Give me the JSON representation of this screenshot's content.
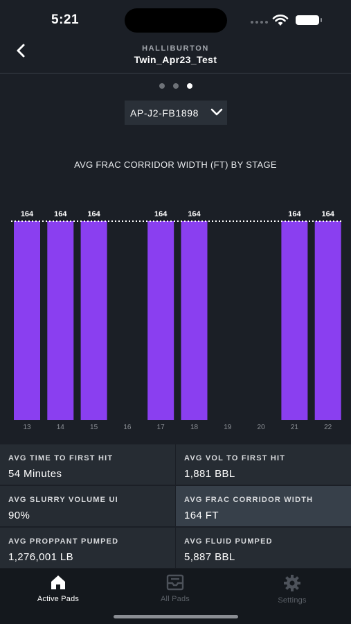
{
  "status_bar": {
    "time": "5:21"
  },
  "header": {
    "company": "HALLIBURTON",
    "pad_name": "Twin_Apr23_Test"
  },
  "pager": {
    "count": 3,
    "active": 2
  },
  "well_select": {
    "value": "AP-J2-FB1898"
  },
  "chart_data": {
    "type": "bar",
    "title": "AVG FRAC CORRIDOR WIDTH (FT) BY STAGE",
    "categories": [
      "13",
      "14",
      "15",
      "16",
      "17",
      "18",
      "19",
      "20",
      "21",
      "22"
    ],
    "values": [
      164,
      164,
      164,
      null,
      164,
      164,
      null,
      null,
      164,
      164
    ],
    "data_labels": [
      "164",
      "164",
      "164",
      "",
      "164",
      "164",
      "",
      "",
      "164",
      "164"
    ],
    "reference_line": 164,
    "ylim": [
      0,
      164
    ],
    "bar_color": "#8a3ff0",
    "grid": false
  },
  "stats": [
    {
      "label": "AVG TIME TO FIRST HIT",
      "value": "54 Minutes"
    },
    {
      "label": "AVG VOL TO FIRST HIT",
      "value": "1,881 BBL"
    },
    {
      "label": "AVG SLURRY VOLUME UI",
      "value": "90%"
    },
    {
      "label": "AVG FRAC CORRIDOR WIDTH",
      "value": "164 FT"
    },
    {
      "label": "AVG PROPPANT PUMPED",
      "value": "1,276,001 LB"
    },
    {
      "label": "AVG FLUID PUMPED",
      "value": "5,887 BBL"
    }
  ],
  "tabs": [
    {
      "label": "Active Pads",
      "icon": "home-icon"
    },
    {
      "label": "All Pads",
      "icon": "inbox-icon"
    },
    {
      "label": "Settings",
      "icon": "gear-icon"
    }
  ],
  "colors": {
    "background": "#1b1f26",
    "accent": "#8a3ff0",
    "tile": "#262c33",
    "tile_highlight": "#37404a"
  }
}
